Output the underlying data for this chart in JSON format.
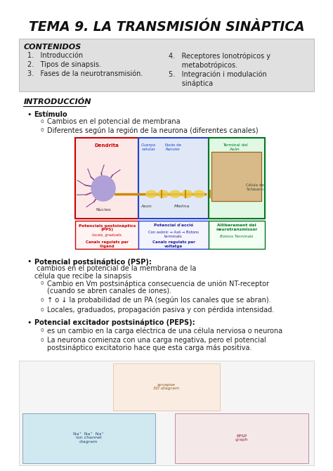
{
  "title": "TEMA 9. LA TRANSMISIÓN SINÀPTICA",
  "bg_color": "#ffffff",
  "section_bg": "#e0e0e0",
  "contenidos_title": "CONTENIDOS",
  "contenidos_items_left": [
    "1.   Introducción",
    "2.   Tipos de sinapsis.",
    "3.   Fases de la neurotransmisión."
  ],
  "contenidos_items_right_4": "4.   Receptores Ionotrópicos y",
  "contenidos_items_right_4b": "      metabotrópicos.",
  "contenidos_items_right_5": "5.   Integración i modulación",
  "contenidos_items_right_5b": "      sináptica",
  "intro_title": "INTRODUCCIÓN",
  "bullet1_bold": "Estímulo",
  "bullet1_colon": ":",
  "bullet1_items": [
    "Cambios en el potencial de membrana",
    "Diferentes según la región de la neurona (diferentes canales)"
  ],
  "bullet2_bold": "Potencial postsináptico (PSP):",
  "bullet2_rest": " cambios en el potencial de la membrana de la",
  "bullet2_rest2": "célula que recibe la sinapsis",
  "bullet2_items": [
    "Cambio en Vm postsináptica consecuencia de unión NT-receptor",
    "(cuando se abren canales de iones).",
    "↑ o ↓ la probabilidad de un PA (según los canales que se abran).",
    "Locales, graduados, propagación pasiva y con pérdida intensidad."
  ],
  "bullet3_bold": "Potencial excitador postsináptico (PEPS):",
  "bullet3_items": [
    "es un cambio en la carga eléctrica de una célula nerviosa o neurona",
    "La neurona comienza con una carga negativa, pero el potencial",
    "postsináptico excitatorio hace que esta carga más positiva."
  ],
  "neuron_labels": {
    "dendrita": "Dendrita",
    "cuerpo": "Cuerpo\ncelular",
    "nodo": "Nodo de\nRanvier",
    "terminal": "Terminal del\nAxón",
    "axon": "Axon",
    "mielina": "Mielina",
    "nucleo": "Núcleo",
    "celula": "Célula de\nSchwann"
  },
  "box_red_title": "Potencials postsinàptics\n(PPS)",
  "box_red_sub1": "locals, graduats",
  "box_red_sub2": "Canals regulats per\nlligand",
  "box_blue_title": "Potencial d'acció",
  "box_blue_sub1": "Con axònic → Axó → Botons\nterminats",
  "box_blue_sub2": "Canals regulats per\nvoltatge",
  "box_green_title": "Alliberament del\nneurotransmissor",
  "box_green_sub1": "Botons Terminals",
  "body_fontsize": 7.0,
  "small_fontsize": 6.0,
  "title_fontsize": 13.5,
  "section_title_fontsize": 8.0
}
